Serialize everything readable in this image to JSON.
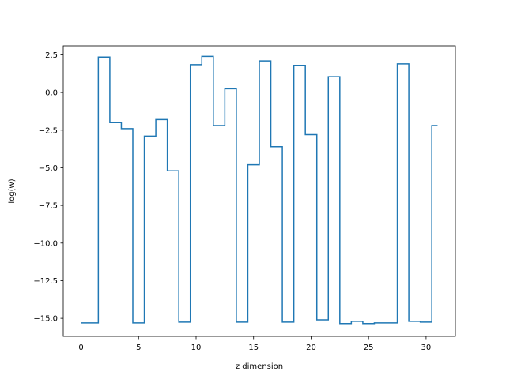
{
  "chart_data": {
    "type": "line",
    "drawstyle": "steps-mid",
    "title": "",
    "xlabel": "z dimension",
    "ylabel": "log(w)",
    "xlim": [
      -1.55,
      32.55
    ],
    "ylim": [
      -16.2,
      3.1
    ],
    "xticks": [
      0,
      5,
      10,
      15,
      20,
      25,
      30
    ],
    "xtick_labels": [
      "0",
      "5",
      "10",
      "15",
      "20",
      "25",
      "30"
    ],
    "yticks": [
      2.5,
      0.0,
      -2.5,
      -5.0,
      -7.5,
      -10.0,
      -12.5,
      -15.0
    ],
    "ytick_labels": [
      "2.5",
      "0.0",
      "−2.5",
      "−5.0",
      "−7.5",
      "−10.0",
      "−12.5",
      "−15.0"
    ],
    "grid": false,
    "legend": "none",
    "series": [
      {
        "color": "#1f77b4",
        "x": [
          0,
          1,
          2,
          3,
          4,
          5,
          6,
          7,
          8,
          9,
          10,
          11,
          12,
          13,
          14,
          15,
          16,
          17,
          18,
          19,
          20,
          21,
          22,
          23,
          24,
          25,
          26,
          27,
          28,
          29,
          30,
          31
        ],
        "values": [
          -15.3,
          -15.3,
          2.35,
          -2.0,
          -2.4,
          -15.3,
          -2.9,
          -1.8,
          -5.2,
          -15.25,
          1.85,
          2.4,
          -2.2,
          0.25,
          -15.25,
          -4.8,
          2.1,
          -3.6,
          -15.25,
          1.8,
          -2.8,
          -15.1,
          1.05,
          -15.35,
          -15.2,
          -15.35,
          -15.3,
          -15.3,
          1.9,
          -15.2,
          -15.25,
          -2.2
        ]
      }
    ]
  }
}
